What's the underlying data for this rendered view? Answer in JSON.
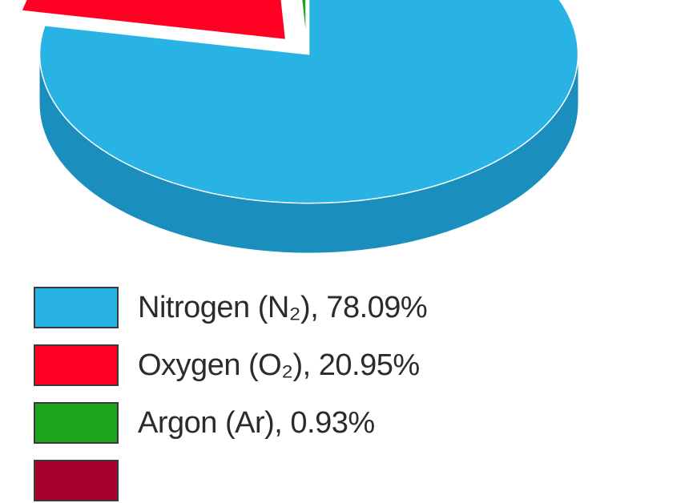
{
  "chart_data": {
    "type": "pie",
    "title": "",
    "slices": [
      {
        "label": "Nitrogen (N₂), 78.09%",
        "value": 78.09,
        "color": "#29b2e4",
        "side_color": "#1a8fbd"
      },
      {
        "label": "Oxygen (O₂), 20.95%",
        "value": 20.95,
        "color": "#ff0022",
        "side_color": "#c20018"
      },
      {
        "label": "Argon (Ar), 0.93%",
        "value": 0.93,
        "color": "#1ea51e",
        "side_color": "#147a14"
      },
      {
        "label": "",
        "value": 0.03,
        "color": "#a8002c",
        "side_color": "#7a0020"
      }
    ],
    "style": "3d-exploded",
    "legend_placement": "bottom-left"
  }
}
